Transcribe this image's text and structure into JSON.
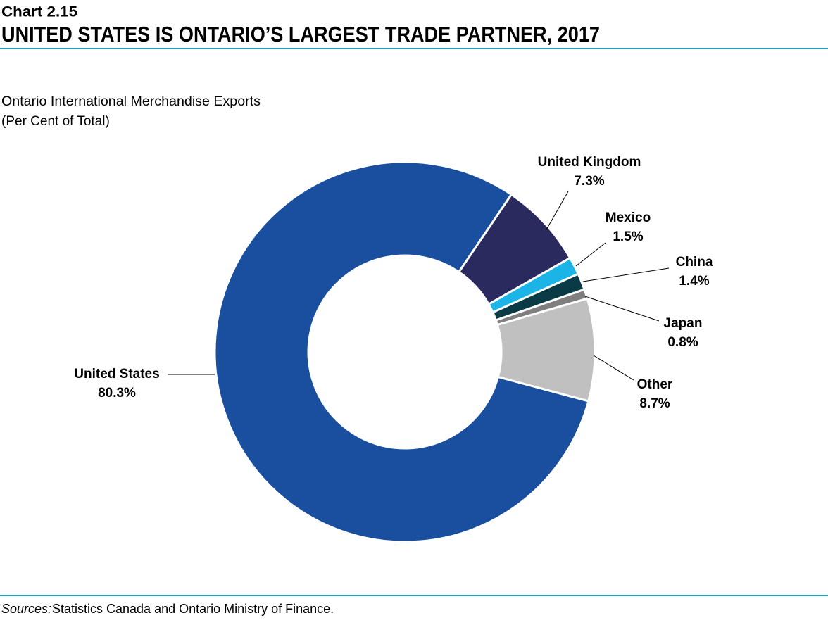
{
  "header": {
    "chart_number": "Chart 2.15",
    "source_label": "Sources:",
    "source_text": "Statistics Canada and Ontario Ministry of Finance."
  },
  "chart_data": {
    "type": "donut",
    "title": "UNITED STATES IS ONTARIO’S LARGEST TRADE PARTNER, 2017",
    "subtitle": [
      "Ontario International Merchandise Exports",
      "(Per Cent of Total)"
    ],
    "categories": [
      "United States",
      "United Kingdom",
      "Mexico",
      "China",
      "Japan",
      "Other"
    ],
    "values": [
      80.3,
      7.3,
      1.5,
      1.4,
      0.8,
      8.7
    ],
    "value_labels": [
      "80.3%",
      "7.3%",
      "1.5%",
      "1.4%",
      "0.8%",
      "8.7%"
    ],
    "colors": [
      "#1a4f9f",
      "#2b2a5e",
      "#1ab5e6",
      "#0a3a45",
      "#7f7f7f",
      "#c0c0c0"
    ]
  }
}
